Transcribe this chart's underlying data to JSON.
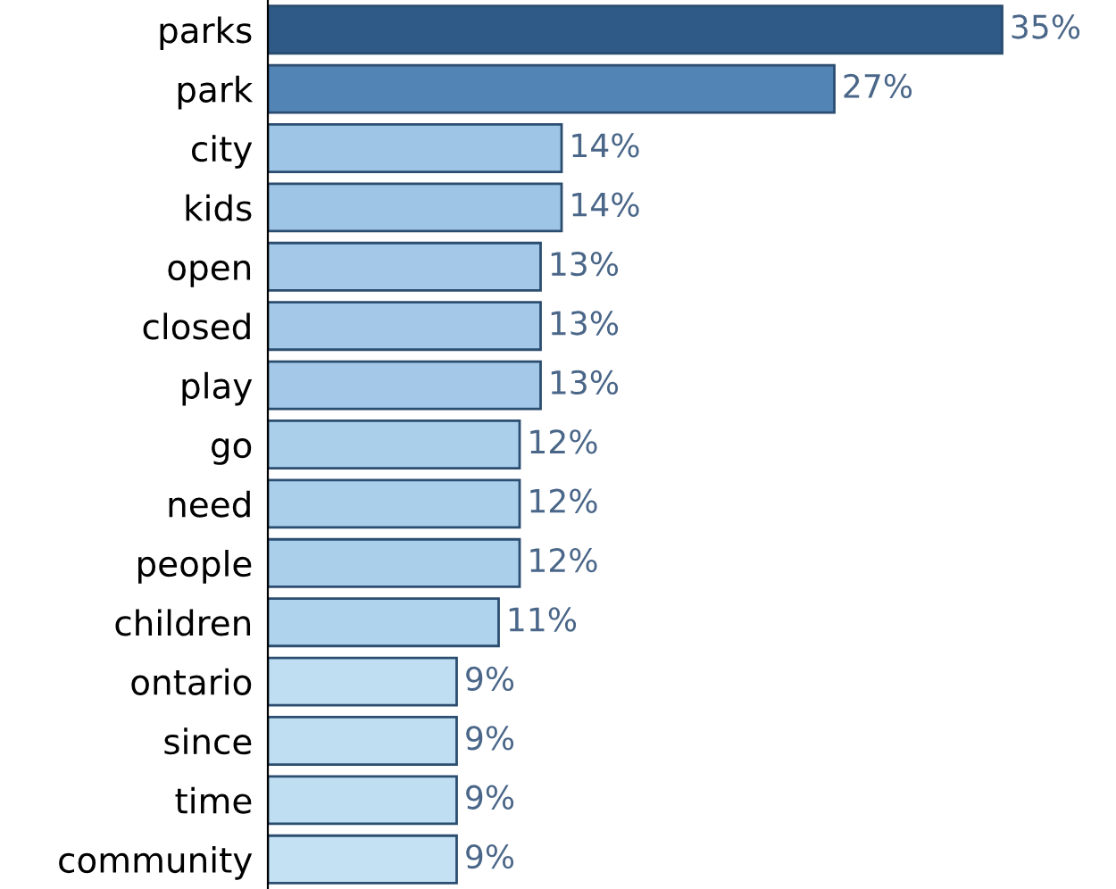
{
  "chart_data": {
    "type": "bar",
    "orientation": "horizontal",
    "data_labels": true,
    "value_labels": [
      "35%",
      "27%",
      "14%",
      "14%",
      "13%",
      "13%",
      "13%",
      "12%",
      "12%",
      "12%",
      "11%",
      "9%",
      "9%",
      "9%",
      "9%"
    ],
    "categories": [
      "parks",
      "park",
      "city",
      "kids",
      "open",
      "closed",
      "play",
      "go",
      "need",
      "people",
      "children",
      "ontario",
      "since",
      "time",
      "community"
    ],
    "values": [
      35,
      27,
      14,
      14,
      13,
      13,
      13,
      12,
      12,
      12,
      11,
      9,
      9,
      9,
      9
    ],
    "colors": [
      "#2f5a87",
      "#5284b6",
      "#9ec5e5",
      "#9ec5e5",
      "#a4c9e8",
      "#a4c9e8",
      "#a4c9e8",
      "#aacfeb",
      "#aacfeb",
      "#aacfeb",
      "#b0d3ed",
      "#bfdef2",
      "#bfdef2",
      "#bfdef2",
      "#c4e1f4"
    ],
    "grid": false,
    "legend": false
  }
}
